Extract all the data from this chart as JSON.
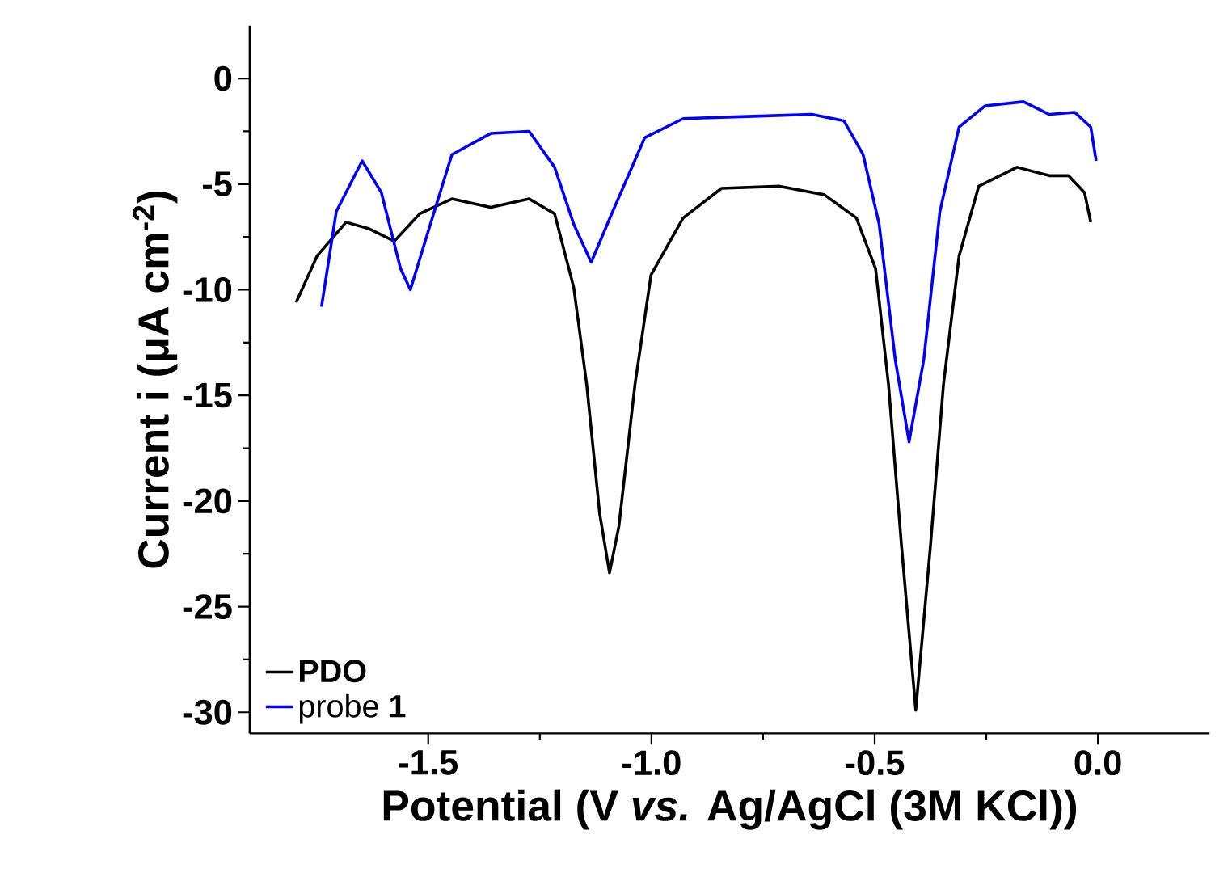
{
  "chart_data": {
    "type": "line",
    "xlabel": "Potential (V *vs.* Ag/AgCl (3M KCl))",
    "ylabel": "Current i (μA cm$^{-2}$)",
    "xlim": [
      -1.9,
      0.25
    ],
    "ylim": [
      -31,
      2.5
    ],
    "xticks": [
      {
        "value": -1.5,
        "label": "-1.5"
      },
      {
        "value": -1.0,
        "label": "-1.0"
      },
      {
        "value": -0.5,
        "label": "-0.5"
      },
      {
        "value": 0.0,
        "label": "0.0"
      }
    ],
    "yticks": [
      -30,
      -25,
      -20,
      -15,
      -10,
      -5,
      0
    ],
    "grid": false,
    "legend": "bottom left",
    "marker": "none",
    "line_style": "solid",
    "series": [
      {
        "name": "PDO",
        "color": "#000000",
        "x": [
          -1.796,
          -1.749,
          -1.684,
          -1.634,
          -1.576,
          -1.519,
          -1.447,
          -1.36,
          -1.274,
          -1.217,
          -1.174,
          -1.145,
          -1.116,
          -1.094,
          -1.073,
          -1.037,
          -1.001,
          -0.929,
          -0.843,
          -0.713,
          -0.613,
          -0.541,
          -0.498,
          -0.469,
          -0.44,
          -0.408,
          -0.375,
          -0.346,
          -0.311,
          -0.267,
          -0.181,
          -0.109,
          -0.066,
          -0.03,
          -0.016
        ],
        "values": [
          -10.6,
          -8.4,
          -6.8,
          -7.1,
          -7.7,
          -6.4,
          -5.7,
          -6.1,
          -5.7,
          -6.4,
          -9.9,
          -14.5,
          -20.6,
          -23.4,
          -21.2,
          -14.5,
          -9.3,
          -6.6,
          -5.2,
          -5.1,
          -5.5,
          -6.6,
          -9.0,
          -14.5,
          -22.1,
          -29.9,
          -22.1,
          -14.5,
          -8.4,
          -5.1,
          -4.2,
          -4.6,
          -4.6,
          -5.4,
          -6.8
        ]
      },
      {
        "name": "probe **1**",
        "color": "#0000ff",
        "x": [
          -1.739,
          -1.706,
          -1.648,
          -1.605,
          -1.562,
          -1.54,
          -1.504,
          -1.447,
          -1.36,
          -1.274,
          -1.217,
          -1.174,
          -1.135,
          -1.087,
          -1.015,
          -0.929,
          -0.785,
          -0.641,
          -0.569,
          -0.526,
          -0.49,
          -0.454,
          -0.423,
          -0.39,
          -0.354,
          -0.311,
          -0.253,
          -0.167,
          -0.109,
          -0.052,
          -0.016,
          -0.004
        ],
        "values": [
          -10.8,
          -6.3,
          -3.9,
          -5.4,
          -9.0,
          -10.0,
          -7.5,
          -3.6,
          -2.6,
          -2.5,
          -4.2,
          -6.9,
          -8.7,
          -6.3,
          -2.8,
          -1.9,
          -1.8,
          -1.7,
          -2.0,
          -3.6,
          -6.9,
          -13.3,
          -17.2,
          -13.3,
          -6.3,
          -2.3,
          -1.3,
          -1.1,
          -1.7,
          -1.6,
          -2.3,
          -3.9
        ]
      }
    ]
  }
}
